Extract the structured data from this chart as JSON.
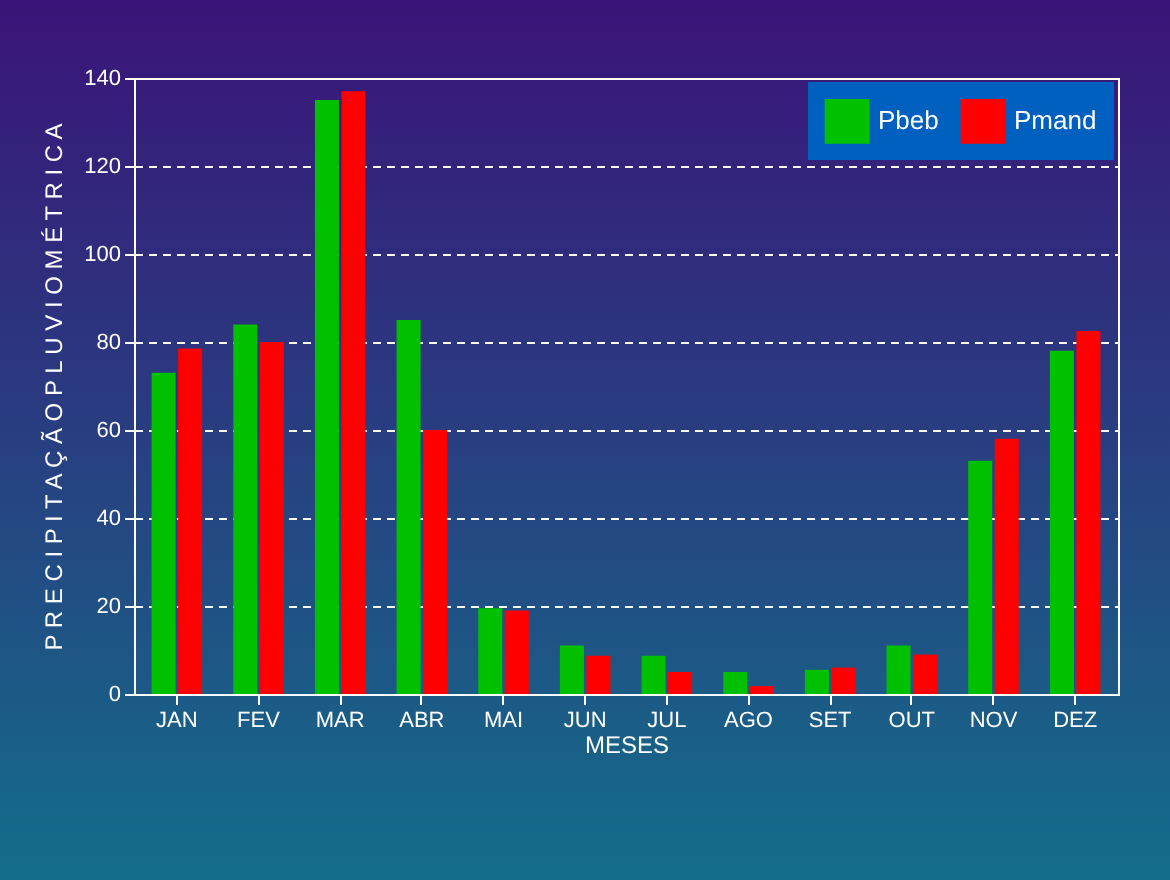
{
  "chart_data": {
    "type": "bar",
    "xlabel": "MESES",
    "ylabel": "P R E C I P I T A Ç Ã O   P L U V I O M É T R I C A",
    "categories": [
      "JAN",
      "FEV",
      "MAR",
      "ABR",
      "MAI",
      "JUN",
      "JUL",
      "AGO",
      "SET",
      "OUT",
      "NOV",
      "DEZ"
    ],
    "series": [
      {
        "name": "Pbeb",
        "color": "#00c000",
        "values": [
          73,
          84,
          135,
          85,
          19.5,
          11,
          8.7,
          5,
          5.5,
          11,
          53,
          78
        ]
      },
      {
        "name": "Pmand",
        "color": "#ff0000",
        "values": [
          78.5,
          80,
          137,
          60,
          19,
          8.7,
          5,
          1.8,
          6,
          9,
          58,
          82.5
        ]
      }
    ],
    "ylim": [
      0,
      140
    ],
    "yticks": [
      0,
      20,
      40,
      60,
      80,
      100,
      120,
      140
    ],
    "grid": "y",
    "legend": "top right"
  }
}
